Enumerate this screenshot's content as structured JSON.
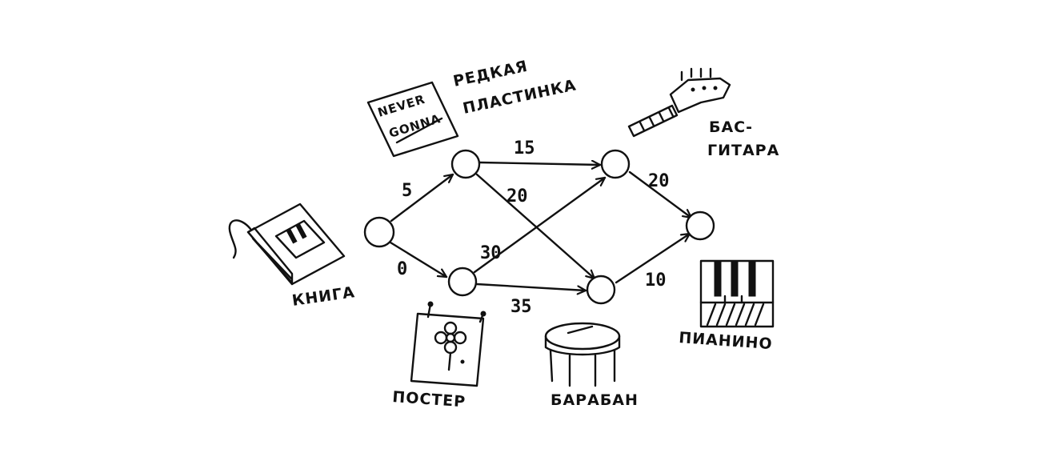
{
  "labels": {
    "record": [
      "РЕДКАЯ",
      "ПЛАСТИНКА"
    ],
    "record_cover": [
      "NEVER",
      "GONNA"
    ],
    "bass": [
      "БАС-",
      "ГИТАРА"
    ],
    "book": "КНИГА",
    "poster": "ПОСТЕР",
    "drum": "БАРАБАН",
    "piano": "ПИАНИНО"
  },
  "edges": [
    {
      "from": "start",
      "to": "record",
      "weight": "5"
    },
    {
      "from": "start",
      "to": "poster",
      "weight": "0"
    },
    {
      "from": "record",
      "to": "bass",
      "weight": "15"
    },
    {
      "from": "record",
      "to": "drum",
      "weight": "20"
    },
    {
      "from": "poster",
      "to": "bass",
      "weight": "30"
    },
    {
      "from": "poster",
      "to": "drum",
      "weight": "35"
    },
    {
      "from": "bass",
      "to": "piano",
      "weight": "20"
    },
    {
      "from": "drum",
      "to": "piano",
      "weight": "10"
    }
  ]
}
